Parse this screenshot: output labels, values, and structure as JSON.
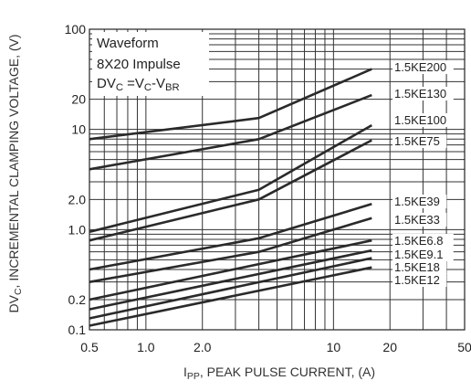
{
  "chart_data": {
    "type": "line",
    "xlabel_prefix": "I",
    "xlabel_sub": "PP",
    "xlabel_rest": ", PEAK PULSE CURRENT, (A)",
    "ylabel_prefix": "DV",
    "ylabel_sub": "C",
    "ylabel_rest": ", INCREMENTAL CLAMPING VOLTAGE, (V)",
    "x_scale": "log",
    "y_scale": "log",
    "xlim": [
      0.5,
      50
    ],
    "ylim": [
      0.1,
      100
    ],
    "grid": true,
    "x_ticks": [
      {
        "value": 0.5,
        "label": "0.5"
      },
      {
        "value": 1.0,
        "label": "1.0"
      },
      {
        "value": 2.0,
        "label": "2.0"
      },
      {
        "value": 10,
        "label": "10"
      },
      {
        "value": 20,
        "label": "20"
      },
      {
        "value": 50,
        "label": "50"
      }
    ],
    "y_ticks": [
      {
        "value": 100,
        "label": "100"
      },
      {
        "value": 20,
        "label": "20"
      },
      {
        "value": 10,
        "label": "10"
      },
      {
        "value": 2.0,
        "label": "2.0"
      },
      {
        "value": 1.0,
        "label": "1.0"
      },
      {
        "value": 0.2,
        "label": "0.2"
      },
      {
        "value": 0.1,
        "label": "0.1"
      }
    ],
    "legend": {
      "placement": "top-left",
      "line1": "Waveform",
      "line2": "8X20 Impulse",
      "line3_a": "DV",
      "line3_a_sub": "C",
      "line3_b": " =V",
      "line3_b_sub": "C",
      "line3_c": "-V",
      "line3_c_sub": "BR"
    },
    "series": [
      {
        "name": "1.5KE200",
        "x": [
          0.5,
          4,
          16
        ],
        "y": [
          8.0,
          13.0,
          40.0
        ]
      },
      {
        "name": "1.5KE130",
        "x": [
          0.5,
          4,
          16
        ],
        "y": [
          4.0,
          8.0,
          22.0
        ]
      },
      {
        "name": "1.5KE100",
        "x": [
          0.5,
          4,
          16
        ],
        "y": [
          0.95,
          2.5,
          11.0
        ]
      },
      {
        "name": "1.5KE75",
        "x": [
          0.5,
          4,
          16
        ],
        "y": [
          0.78,
          2.0,
          7.8
        ]
      },
      {
        "name": "1.5KE39",
        "x": [
          0.5,
          4,
          16
        ],
        "y": [
          0.4,
          0.82,
          1.8
        ]
      },
      {
        "name": "1.5KE33",
        "x": [
          0.5,
          4,
          16
        ],
        "y": [
          0.3,
          0.6,
          1.3
        ]
      },
      {
        "name": "1.5KE6.8",
        "x": [
          0.5,
          16
        ],
        "y": [
          0.2,
          0.78
        ]
      },
      {
        "name": "1.5KE9.1",
        "x": [
          0.5,
          16
        ],
        "y": [
          0.16,
          0.62
        ]
      },
      {
        "name": "1.5KE18",
        "x": [
          0.5,
          16
        ],
        "y": [
          0.13,
          0.52
        ]
      },
      {
        "name": "1.5KE12",
        "x": [
          0.5,
          16
        ],
        "y": [
          0.11,
          0.42
        ]
      }
    ]
  }
}
